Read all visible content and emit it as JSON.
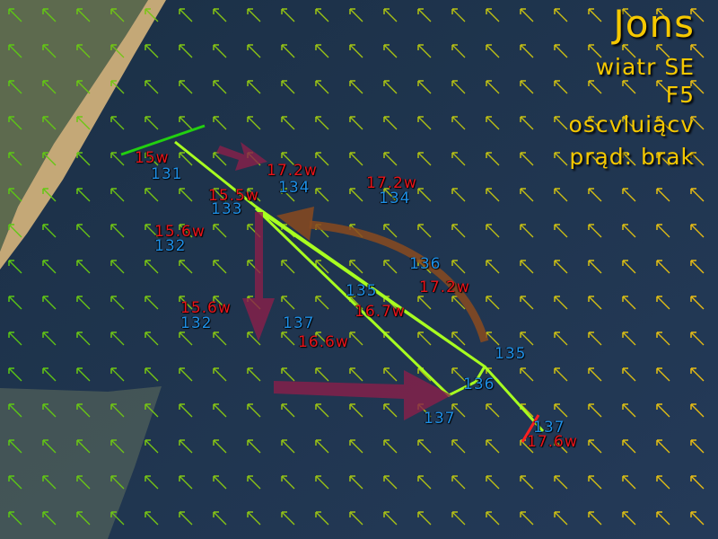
{
  "info": {
    "title": "Jons",
    "wind": "wiatr SE",
    "force": "F5",
    "wind_type": "oscvluiącv",
    "current": "prąd: brak"
  },
  "colors": {
    "speed": "#e8141a",
    "heading": "#1e8fe6",
    "info": "#f5c800",
    "track": "#a8ff20",
    "maneuver_arrow": "#8a1f4a",
    "wind_shift_arrow": "#8a4a1e"
  },
  "labels": [
    {
      "speed": "15w",
      "heading": "131"
    },
    {
      "speed": "17.2w",
      "heading": "134"
    },
    {
      "speed": "15.5w",
      "heading": "133"
    },
    {
      "speed": "17.2w",
      "heading": "134"
    },
    {
      "speed": "15.6w",
      "heading": "132"
    },
    {
      "speed": "17.2w",
      "heading": "136"
    },
    {
      "speed": "16.7w",
      "heading": "135"
    },
    {
      "speed": "15.6w",
      "heading": "132"
    },
    {
      "speed": "16.6w",
      "heading": "137"
    },
    {
      "speed": "17.6w",
      "heading": "137"
    }
  ],
  "heading_only": [
    "135",
    "136",
    "137"
  ]
}
